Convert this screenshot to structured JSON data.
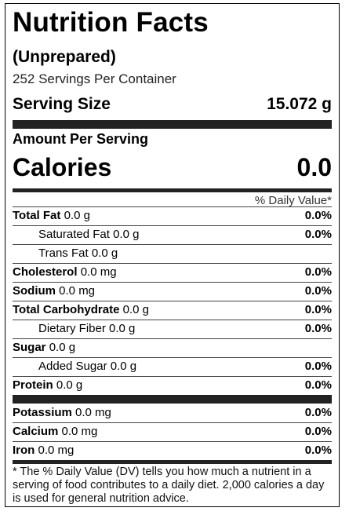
{
  "label": {
    "title": "Nutrition Facts",
    "preparation": "(Unprepared)",
    "servings_per_container": "252 Servings Per Container",
    "serving_size_label": "Serving Size",
    "serving_size_value": "15.072 g",
    "amount_per_serving": "Amount Per Serving",
    "calories_label": "Calories",
    "calories_value": "0.0",
    "daily_value_header": "% Daily Value*",
    "nutrients": [
      {
        "name": "Total Fat",
        "amount": "0.0 g",
        "dv": "0.0%"
      },
      {
        "name": "Saturated Fat",
        "amount": "0.0 g",
        "dv": "0.0%"
      },
      {
        "name": "Trans Fat",
        "amount": "0.0 g",
        "dv": ""
      },
      {
        "name": "Cholesterol",
        "amount": "0.0 mg",
        "dv": "0.0%"
      },
      {
        "name": "Sodium",
        "amount": "0.0 mg",
        "dv": "0.0%"
      },
      {
        "name": "Total Carbohydrate",
        "amount": "0.0 g",
        "dv": "0.0%"
      },
      {
        "name": "Dietary Fiber",
        "amount": "0.0 g",
        "dv": "0.0%"
      },
      {
        "name": "Sugar",
        "amount": "0.0 g",
        "dv": ""
      },
      {
        "name": "Added Sugar",
        "amount": "0.0 g",
        "dv": "0.0%"
      },
      {
        "name": "Protein",
        "amount": "0.0 g",
        "dv": "0.0%"
      },
      {
        "name": "Potassium",
        "amount": "0.0 mg",
        "dv": "0.0%"
      },
      {
        "name": "Calcium",
        "amount": "0.0 mg",
        "dv": "0.0%"
      },
      {
        "name": "Iron",
        "amount": "0.0 mg",
        "dv": "0.0%"
      }
    ],
    "footnote": "* The % Daily Value (DV) tells you how much a nutrient in a serving of food contributes to a daily diet. 2,000 calories a day is used for general nutrition advice."
  }
}
